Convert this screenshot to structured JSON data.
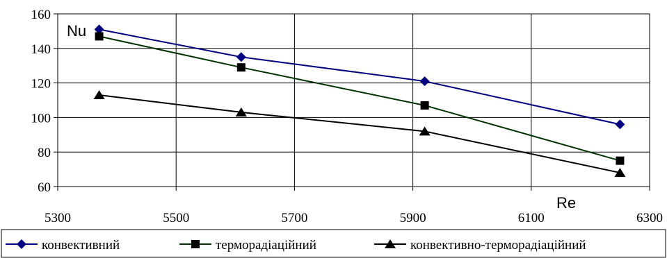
{
  "chart_data": {
    "type": "line",
    "xlabel": "Re",
    "ylabel": "Nu",
    "xlim": [
      5300,
      6300
    ],
    "ylim": [
      60,
      160
    ],
    "xticks": [
      5300,
      5500,
      5700,
      5900,
      6100,
      6300
    ],
    "yticks": [
      60,
      80,
      100,
      120,
      140,
      160
    ],
    "grid": true,
    "legend_position": "bottom",
    "series": [
      {
        "name": "конвективний",
        "color": "#000080",
        "marker": "diamond",
        "x": [
          5370,
          5610,
          5920,
          6250
        ],
        "y": [
          151,
          135,
          121,
          96
        ]
      },
      {
        "name": "терморадіаційний",
        "color": "#003300",
        "marker": "square",
        "x": [
          5370,
          5610,
          5920,
          6250
        ],
        "y": [
          147,
          129,
          107,
          75
        ]
      },
      {
        "name": "конвективно-терморадіаційний",
        "color": "#000000",
        "marker": "triangle",
        "x": [
          5370,
          5610,
          5920,
          6250
        ],
        "y": [
          113,
          103,
          92,
          68
        ]
      }
    ]
  }
}
